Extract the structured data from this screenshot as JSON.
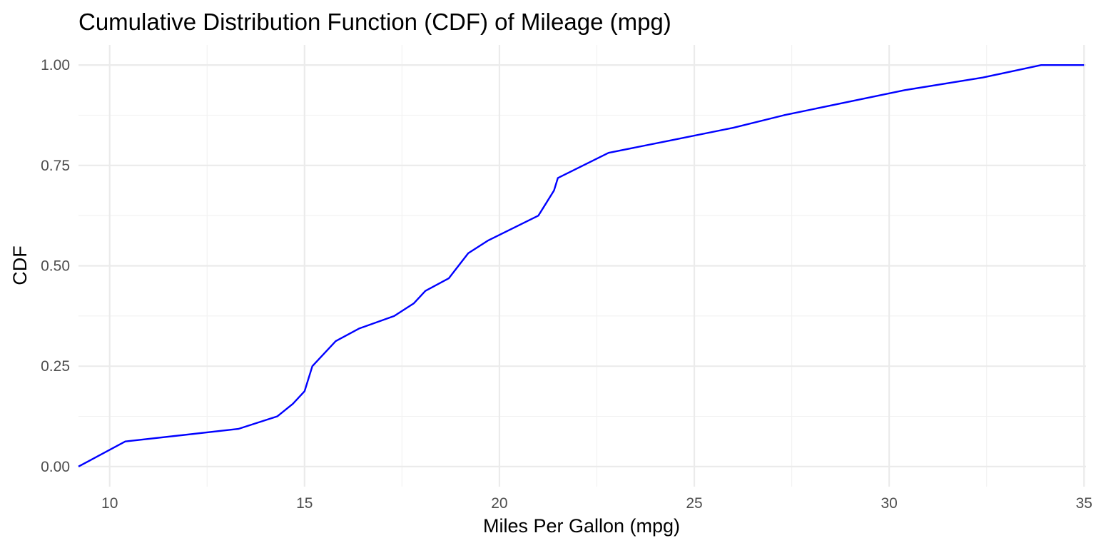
{
  "chart_data": {
    "type": "line",
    "title": "Cumulative Distribution Function (CDF) of Mileage (mpg)",
    "xlabel": "Miles Per Gallon (mpg)",
    "ylabel": "CDF",
    "xlim": [
      9.2,
      35.05
    ],
    "ylim": [
      -0.05,
      1.05
    ],
    "x_ticks": [
      10,
      15,
      20,
      25,
      30,
      35
    ],
    "x_tick_labels": [
      "10",
      "15",
      "20",
      "25",
      "30",
      "35"
    ],
    "x_minor_ticks": [
      12.5,
      17.5,
      22.5,
      27.5,
      32.5
    ],
    "y_ticks": [
      0,
      0.25,
      0.5,
      0.75,
      1.0
    ],
    "y_tick_labels": [
      "0.00",
      "0.25",
      "0.50",
      "0.75",
      "1.00"
    ],
    "y_minor_ticks": [
      0.125,
      0.375,
      0.625,
      0.875
    ],
    "grid": true,
    "series": [
      {
        "color": "#0000ff",
        "x": [
          9.2,
          10.4,
          13.3,
          14.3,
          14.7,
          15.0,
          15.2,
          15.8,
          16.4,
          17.3,
          17.8,
          18.1,
          18.7,
          19.2,
          19.7,
          21.0,
          21.4,
          21.5,
          22.8,
          24.4,
          26.0,
          27.3,
          30.4,
          32.4,
          33.9,
          35.0
        ],
        "y": [
          0.0,
          0.0625,
          0.09375,
          0.125,
          0.15625,
          0.1875,
          0.25,
          0.3125,
          0.34375,
          0.375,
          0.40625,
          0.4375,
          0.46875,
          0.53125,
          0.5625,
          0.625,
          0.6875,
          0.71875,
          0.78125,
          0.8125,
          0.84375,
          0.875,
          0.9375,
          0.96875,
          1.0,
          1.0
        ]
      }
    ]
  }
}
